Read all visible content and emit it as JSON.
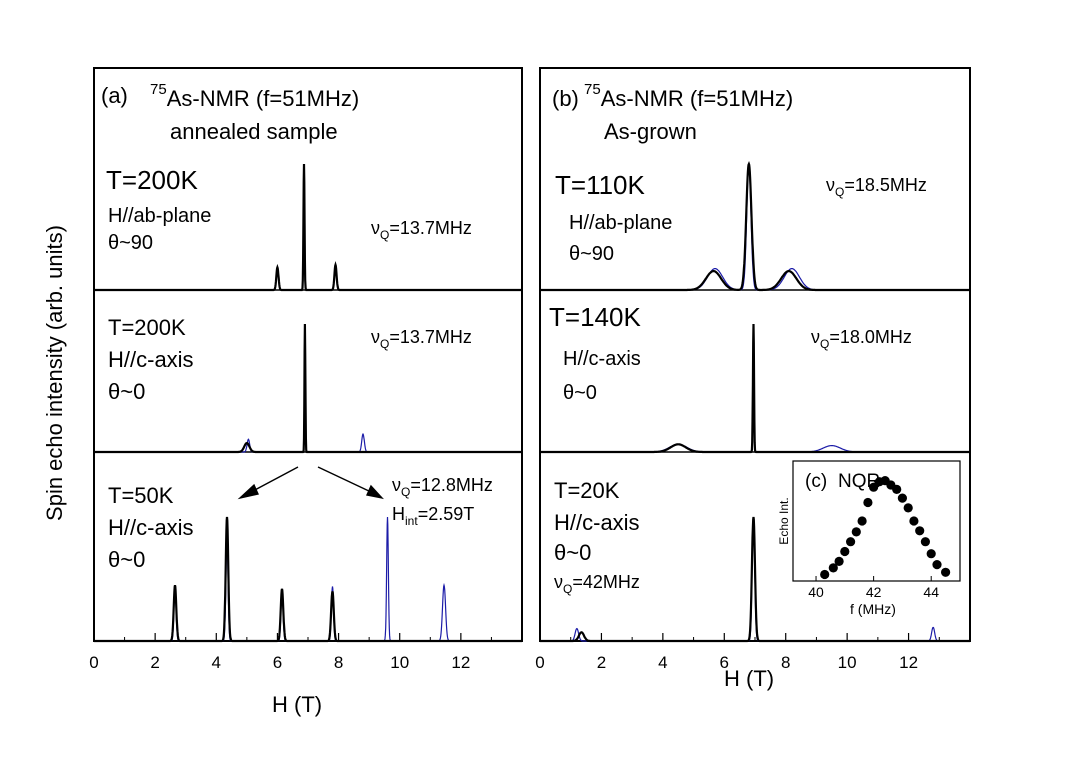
{
  "figure": {
    "ylabel": "Spin echo intensity (arb. units)",
    "xlabel_left": "H  (T)",
    "xlabel_right": "H  (T)",
    "colors": {
      "experiment": "#000000",
      "simulation": "#1c1ca8"
    }
  },
  "chart_data": [
    {
      "type": "line",
      "panel": "(a)",
      "title_isotope": "75",
      "title_rest": "As-NMR (f=51MHz)",
      "subtitle": "annealed sample",
      "xlabel": "H  (T)",
      "ylabel": "Spin echo intensity (arb. units)",
      "xlim": [
        0,
        14
      ],
      "xticks": [
        0,
        2,
        4,
        6,
        8,
        10,
        12
      ],
      "rows": [
        {
          "labels": [
            "T=200K",
            "H//ab-plane",
            "θ~90"
          ],
          "nuq": "13.7MHz",
          "extra_label": null,
          "peaks_exp": [
            {
              "h": 6.0,
              "amp": 0.18,
              "w": 0.05
            },
            {
              "h": 6.87,
              "amp": 1.0,
              "w": 0.025
            },
            {
              "h": 7.9,
              "amp": 0.2,
              "w": 0.05
            }
          ],
          "peaks_sim": []
        },
        {
          "labels": [
            "T=200K",
            "H//c-axis",
            "θ~0"
          ],
          "nuq": "13.7MHz",
          "extra_label": null,
          "peaks_exp": [
            {
              "h": 5.0,
              "amp": 0.07,
              "w": 0.12
            },
            {
              "h": 6.9,
              "amp": 1.0,
              "w": 0.02
            }
          ],
          "peaks_sim": [
            {
              "h": 5.05,
              "amp": 0.1,
              "w": 0.06
            },
            {
              "h": 6.9,
              "amp": 1.0,
              "w": 0.02
            },
            {
              "h": 8.8,
              "amp": 0.14,
              "w": 0.06
            }
          ]
        },
        {
          "labels": [
            "T=50K",
            "H//c-axis",
            "θ~0"
          ],
          "nuq": "12.8MHz",
          "extra_label": "H",
          "extra_sub": "int",
          "extra_value": "=2.59T",
          "peaks_exp": [
            {
              "h": 2.65,
              "amp": 0.45,
              "w": 0.06
            },
            {
              "h": 4.35,
              "amp": 1.0,
              "w": 0.06
            },
            {
              "h": 6.15,
              "amp": 0.42,
              "w": 0.06
            },
            {
              "h": 7.8,
              "amp": 0.4,
              "w": 0.06
            }
          ],
          "peaks_sim": [
            {
              "h": 2.65,
              "amp": 0.45,
              "w": 0.05
            },
            {
              "h": 4.35,
              "amp": 0.86,
              "w": 0.05
            },
            {
              "h": 6.15,
              "amp": 0.42,
              "w": 0.05
            },
            {
              "h": 7.8,
              "amp": 0.44,
              "w": 0.05
            },
            {
              "h": 9.6,
              "amp": 1.0,
              "w": 0.04
            },
            {
              "h": 11.45,
              "amp": 0.45,
              "w": 0.07
            }
          ]
        }
      ]
    },
    {
      "type": "line",
      "panel": "(b)",
      "title_isotope": "75",
      "title_rest": "As-NMR (f=51MHz)",
      "subtitle": "As-grown",
      "xlabel": "H  (T)",
      "xlim": [
        0,
        14
      ],
      "xticks": [
        0,
        2,
        4,
        6,
        8,
        10,
        12
      ],
      "rows": [
        {
          "labels": [
            "T=110K",
            "H//ab-plane",
            "θ~90"
          ],
          "nuq": "18.5MHz",
          "peaks_exp": [
            {
              "h": 5.65,
              "amp": 0.15,
              "w": 0.35
            },
            {
              "h": 6.8,
              "amp": 1.0,
              "w": 0.12
            },
            {
              "h": 8.1,
              "amp": 0.15,
              "w": 0.35
            }
          ],
          "peaks_sim": [
            {
              "h": 5.7,
              "amp": 0.17,
              "w": 0.35
            },
            {
              "h": 6.8,
              "amp": 0.98,
              "w": 0.1
            },
            {
              "h": 8.2,
              "amp": 0.17,
              "w": 0.35
            }
          ]
        },
        {
          "labels": [
            "T=140K",
            "H//c-axis",
            "θ~0"
          ],
          "nuq": "18.0MHz",
          "peaks_exp": [
            {
              "h": 4.5,
              "amp": 0.06,
              "w": 0.35
            },
            {
              "h": 6.95,
              "amp": 1.0,
              "w": 0.025
            }
          ],
          "peaks_sim": [
            {
              "h": 4.5,
              "amp": 0.06,
              "w": 0.4
            },
            {
              "h": 6.95,
              "amp": 1.0,
              "w": 0.025
            },
            {
              "h": 9.5,
              "amp": 0.05,
              "w": 0.4
            }
          ]
        },
        {
          "labels": [
            "T=20K",
            "H//c-axis",
            "θ~0"
          ],
          "nuq": "42MHz",
          "peaks_exp": [
            {
              "h": 1.35,
              "amp": 0.07,
              "w": 0.12
            },
            {
              "h": 6.95,
              "amp": 1.0,
              "w": 0.07
            }
          ],
          "peaks_sim": [
            {
              "h": 1.2,
              "amp": 0.1,
              "w": 0.08
            },
            {
              "h": 6.95,
              "amp": 1.0,
              "w": 0.06
            },
            {
              "h": 12.8,
              "amp": 0.11,
              "w": 0.07
            }
          ]
        }
      ]
    },
    {
      "type": "scatter",
      "panel": "(c)",
      "title": "NQR",
      "xlabel": "f  (MHz)",
      "ylabel": "Echo Int.",
      "xlim": [
        39.2,
        45.0
      ],
      "xticks": [
        40,
        42,
        44
      ],
      "ylim": [
        0,
        1.1
      ],
      "x": [
        40.3,
        40.6,
        40.8,
        41.0,
        41.2,
        41.4,
        41.6,
        41.8,
        42.0,
        42.2,
        42.4,
        42.6,
        42.8,
        43.0,
        43.2,
        43.4,
        43.6,
        43.8,
        44.0,
        44.2,
        44.5
      ],
      "y": [
        0.06,
        0.12,
        0.18,
        0.27,
        0.36,
        0.45,
        0.55,
        0.72,
        0.86,
        0.91,
        0.92,
        0.88,
        0.84,
        0.76,
        0.67,
        0.55,
        0.46,
        0.36,
        0.25,
        0.15,
        0.08
      ]
    }
  ]
}
